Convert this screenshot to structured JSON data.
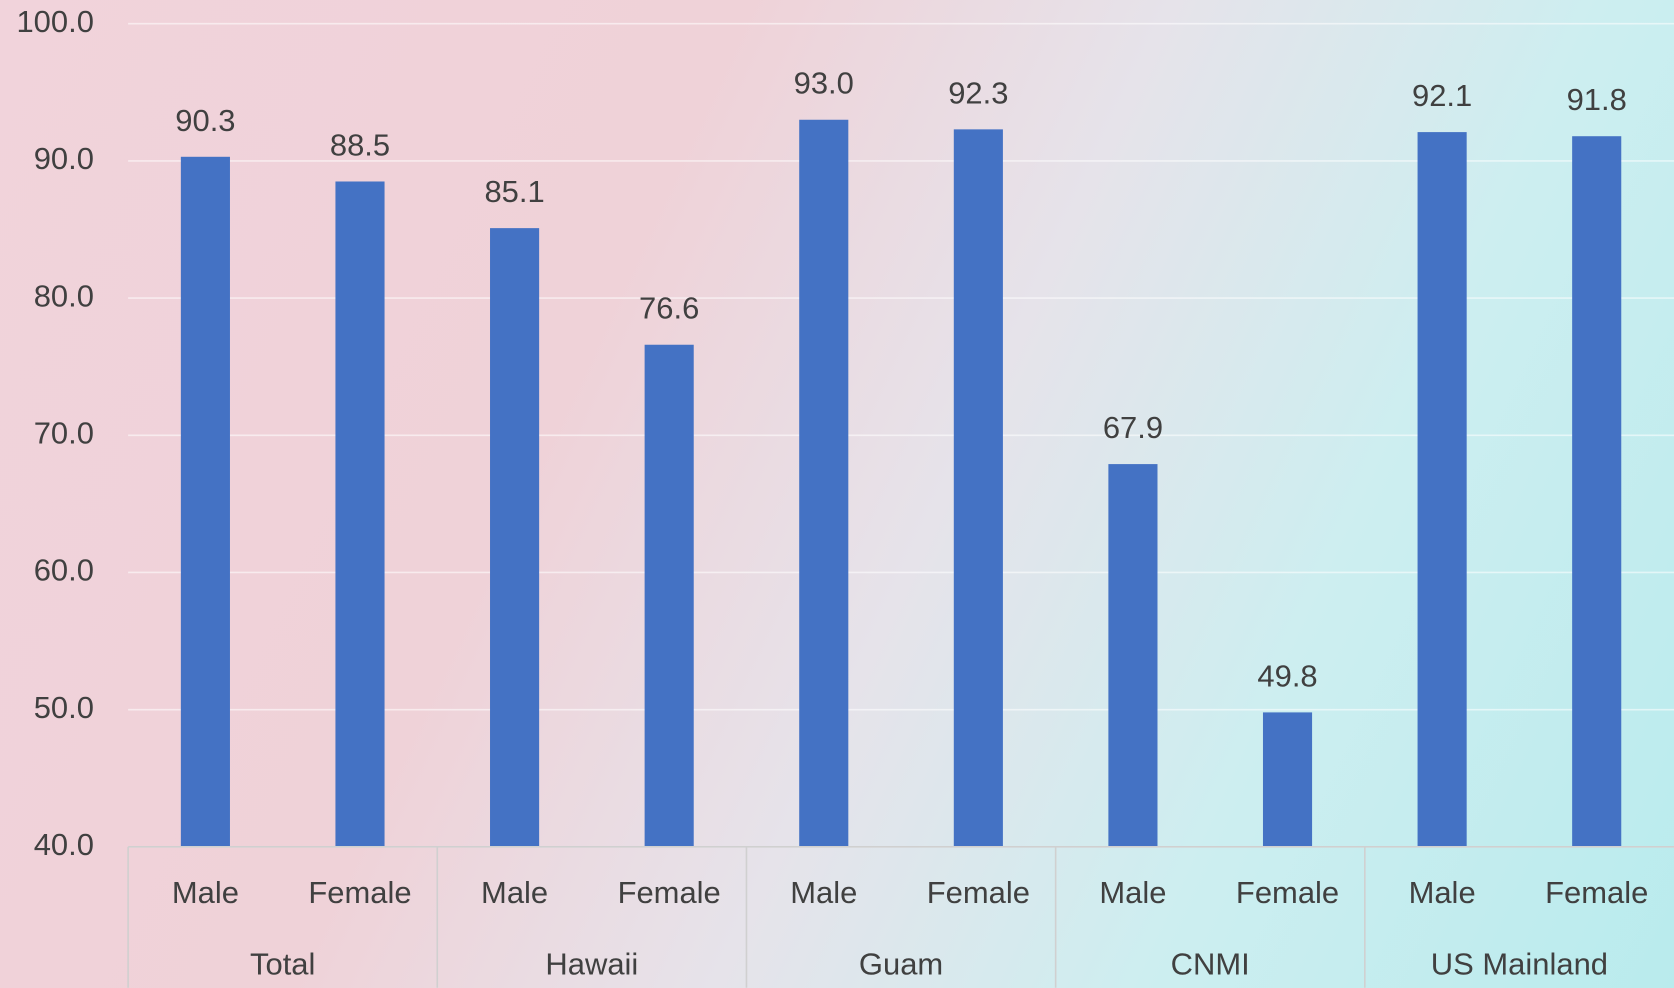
{
  "chart_data": {
    "type": "bar",
    "categories": [
      "Male",
      "Female",
      "Male",
      "Female",
      "Male",
      "Female",
      "Male",
      "Female",
      "Male",
      "Female"
    ],
    "groups": [
      "Total",
      "Hawaii",
      "Guam",
      "CNMI",
      "US Mainland"
    ],
    "values": [
      90.3,
      88.5,
      85.1,
      76.6,
      93.0,
      92.3,
      67.9,
      49.8,
      92.1,
      91.8
    ],
    "value_labels": [
      "90.3",
      "88.5",
      "85.1",
      "76.6",
      "93.0",
      "92.3",
      "67.9",
      "49.8",
      "92.1",
      "91.8"
    ],
    "color": "#4472c4",
    "ylim": [
      40,
      100
    ],
    "yticks": [
      {
        "value": 40,
        "label": "40.0"
      },
      {
        "value": 50,
        "label": "50.0"
      },
      {
        "value": 60,
        "label": "60.0"
      },
      {
        "value": 70,
        "label": "70.0"
      },
      {
        "value": 80,
        "label": "80.0"
      },
      {
        "value": 90,
        "label": "90.0"
      },
      {
        "value": 100,
        "label": "100.0"
      }
    ],
    "grid": true
  }
}
